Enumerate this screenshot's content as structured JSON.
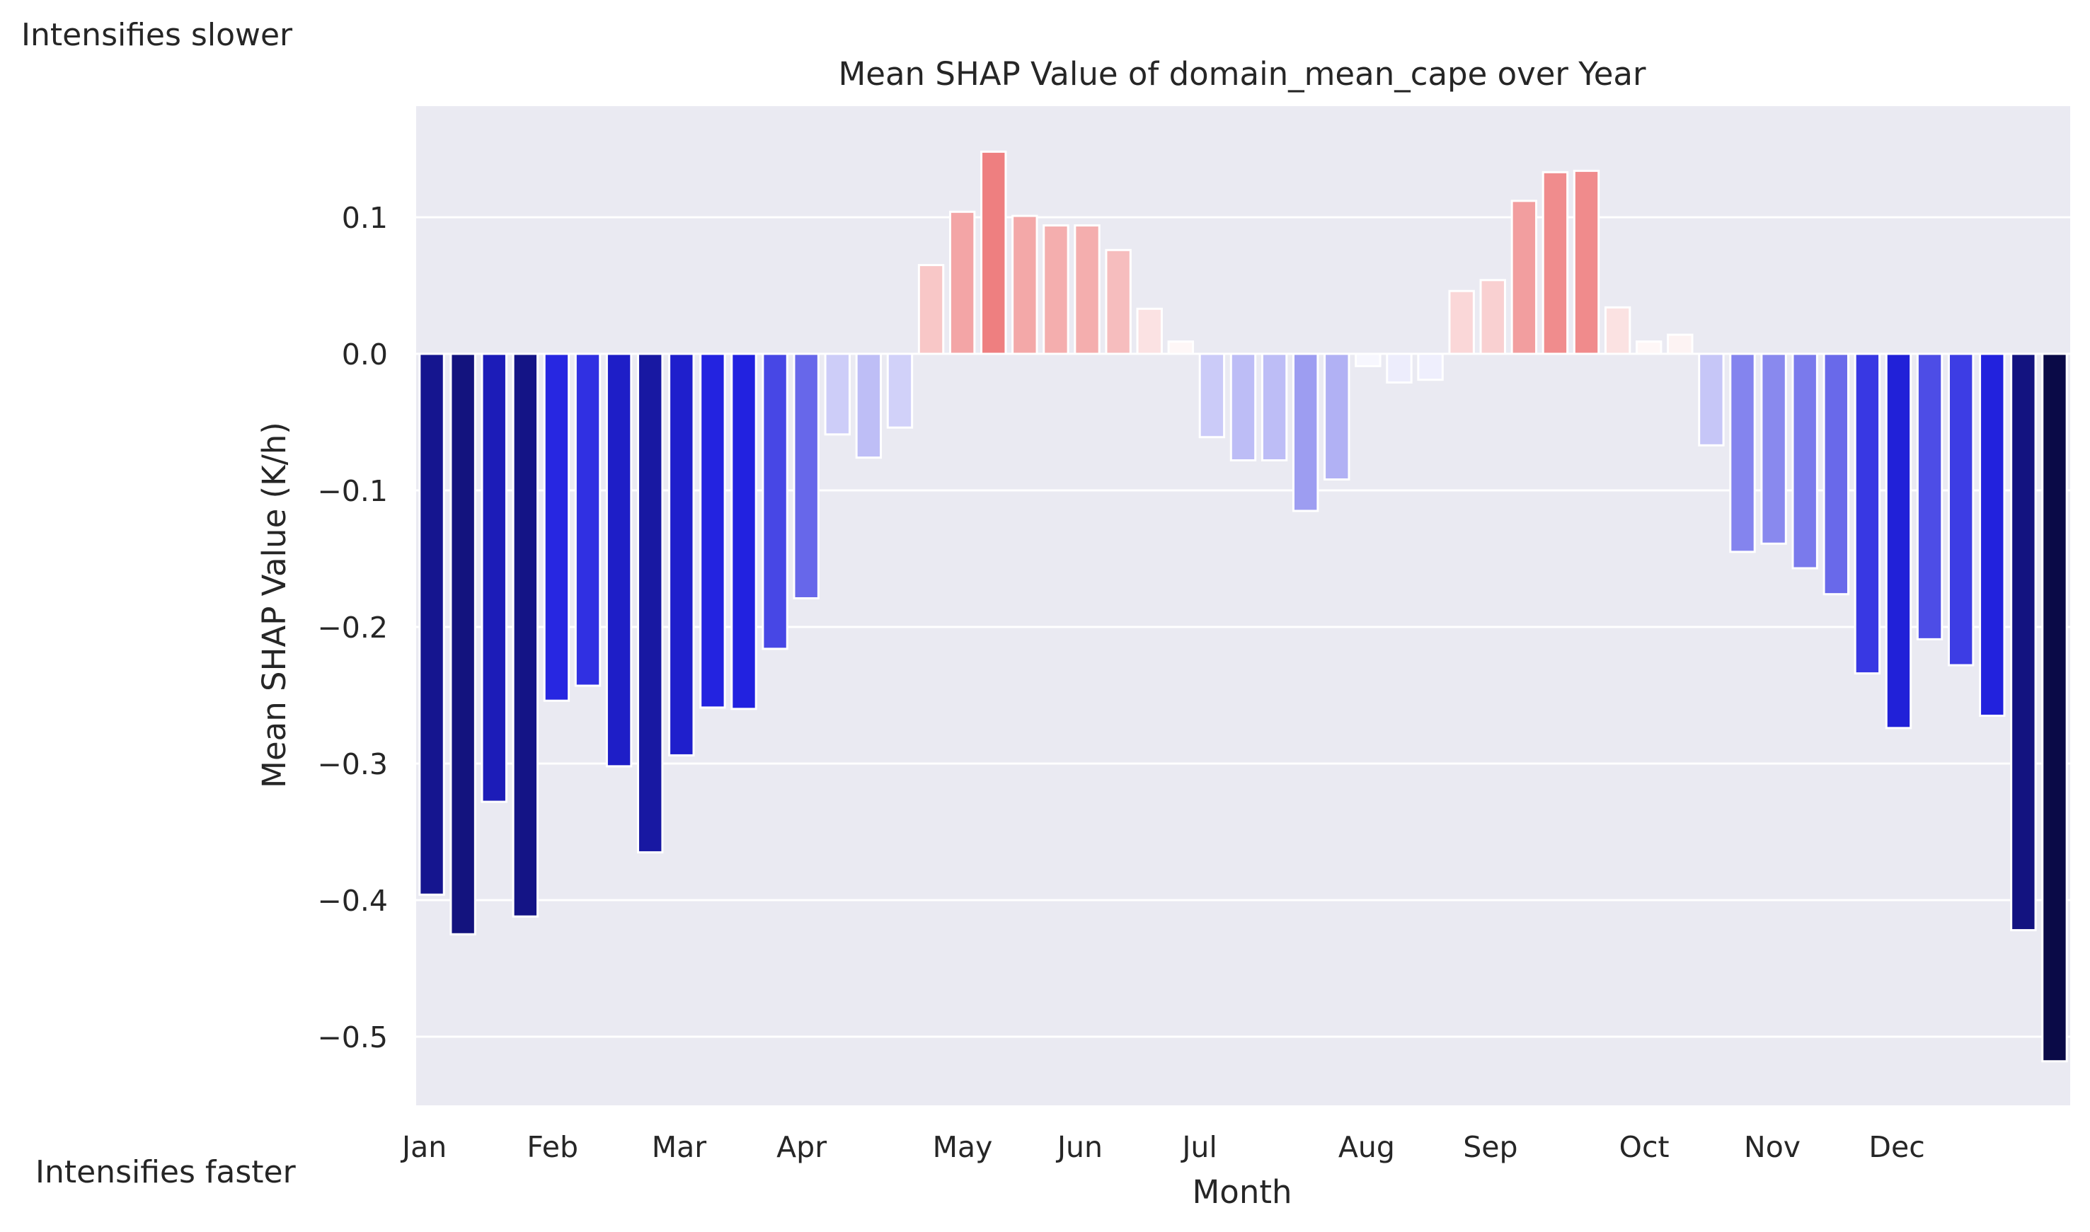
{
  "annotations": {
    "top_left": "Intensifies slower",
    "bottom_left": "Intensifies faster"
  },
  "chart_data": {
    "type": "bar",
    "title": "Mean SHAP Value of domain_mean_cape over Year",
    "xlabel": "Month",
    "ylabel": "Mean SHAP Value (K/h)",
    "ylim": [
      -0.55,
      0.18
    ],
    "yticks": [
      0.1,
      0.0,
      -0.1,
      -0.2,
      -0.3,
      -0.4,
      -0.5
    ],
    "ytick_labels": [
      "0.1",
      "0.0",
      "−0.1",
      "−0.2",
      "−0.3",
      "−0.4",
      "−0.5"
    ],
    "month_ticks": [
      {
        "label": "Jan",
        "index": 0
      },
      {
        "label": "Feb",
        "index": 4
      },
      {
        "label": "Mar",
        "index": 8
      },
      {
        "label": "Apr",
        "index": 12
      },
      {
        "label": "May",
        "index": 17
      },
      {
        "label": "Jun",
        "index": 21
      },
      {
        "label": "Jul",
        "index": 25
      },
      {
        "label": "Aug",
        "index": 30
      },
      {
        "label": "Sep",
        "index": 34
      },
      {
        "label": "Oct",
        "index": 39
      },
      {
        "label": "Nov",
        "index": 43
      },
      {
        "label": "Dec",
        "index": 47
      }
    ],
    "values": [
      -0.396,
      -0.425,
      -0.328,
      -0.412,
      -0.254,
      -0.243,
      -0.302,
      -0.365,
      -0.294,
      -0.259,
      -0.26,
      -0.216,
      -0.179,
      -0.059,
      -0.076,
      -0.054,
      0.065,
      0.104,
      0.148,
      0.101,
      0.094,
      0.094,
      0.076,
      0.033,
      0.009,
      -0.061,
      -0.078,
      -0.078,
      -0.115,
      -0.092,
      -0.009,
      -0.021,
      -0.019,
      0.046,
      0.054,
      0.112,
      0.133,
      0.134,
      0.034,
      0.009,
      0.014,
      -0.067,
      -0.145,
      -0.139,
      -0.157,
      -0.176,
      -0.234,
      -0.274,
      -0.209,
      -0.228,
      -0.265,
      -0.422,
      -0.518
    ],
    "color_scale": {
      "negative_max": "#0a0a46",
      "negative_mid": "#2222e0",
      "zero": "#ffffff",
      "positive_max": "#ee7f80"
    },
    "background": "#eaeaf2",
    "grid": "horizontal"
  }
}
